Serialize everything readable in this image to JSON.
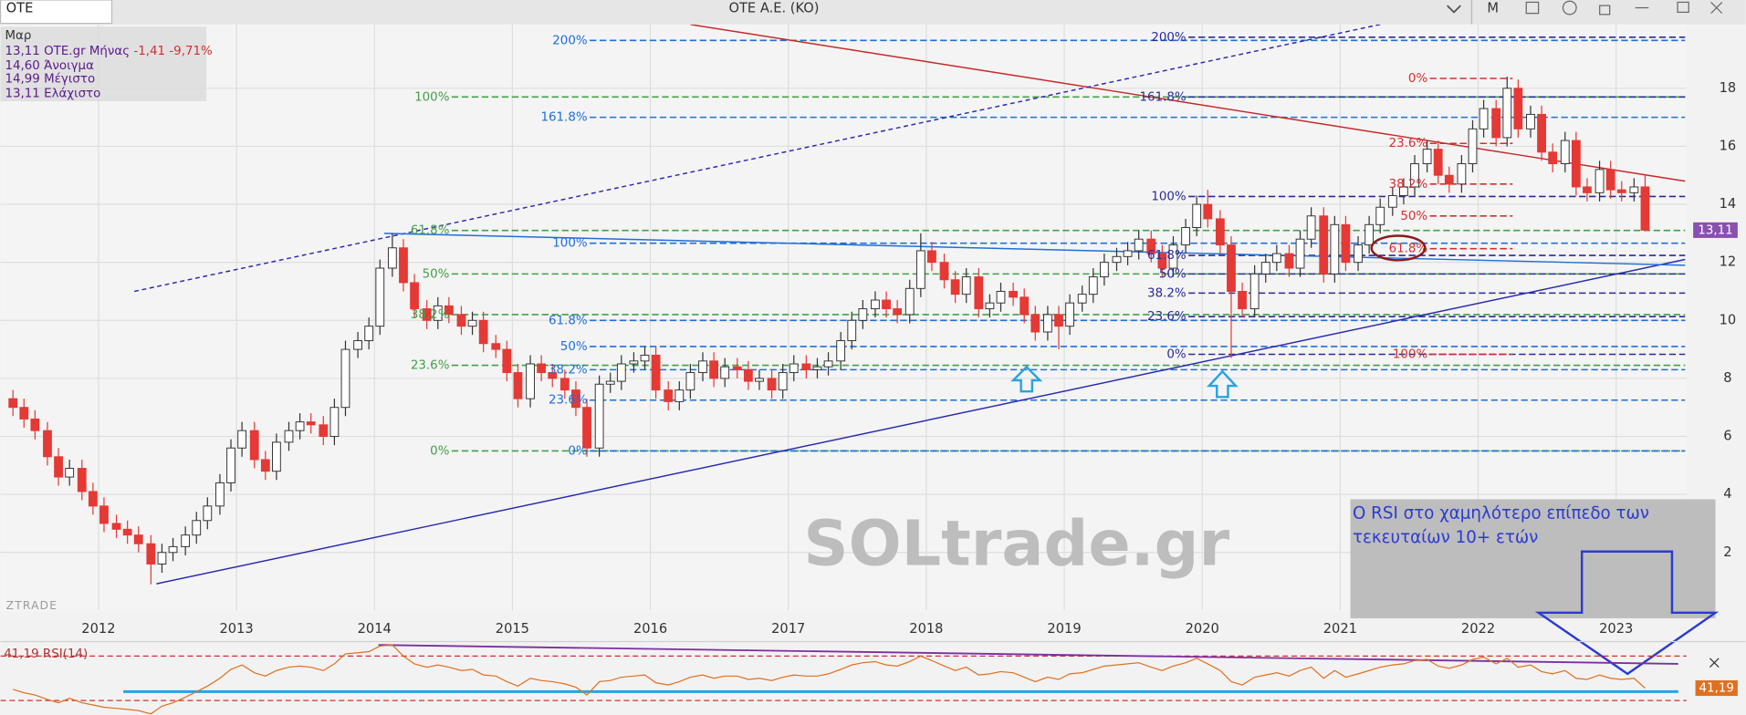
{
  "ui": {
    "symbol": "OTE",
    "menu": "M",
    "info": {
      "period": "Μαρ",
      "line1": "13,11 OTE.gr Μήνας",
      "change": "-1,41 -9,71%",
      "open": "14,60 Άνοιγμα",
      "high": "14,99 Μέγιστο",
      "low": "13,11 Ελάχιστο"
    },
    "watermark": "SOLtrade.gr",
    "brand": "ZTRADE",
    "note_line1": "Ο RSI στο χαμηλότερο επίπεδο των",
    "note_line2": "τεκευταίων 10+ ετών"
  },
  "chart_data": {
    "type": "candlestick",
    "title": "OTE A.E. (KO)",
    "up_color": "#ffffff",
    "down_color": "#e53935",
    "grid": true,
    "xlim": [
      2011.29,
      2023.51
    ],
    "xticks": [
      2012,
      2013,
      2014,
      2015,
      2016,
      2017,
      2018,
      2019,
      2020,
      2021,
      2022,
      2023
    ],
    "ylim": [
      0,
      20.2
    ],
    "yticks": [
      2,
      4,
      6,
      8,
      10,
      12,
      14,
      16,
      18
    ],
    "x": [
      2011.38,
      2011.46,
      2011.54,
      2011.63,
      2011.71,
      2011.79,
      2011.88,
      2011.96,
      2012.04,
      2012.13,
      2012.21,
      2012.29,
      2012.38,
      2012.46,
      2012.54,
      2012.63,
      2012.71,
      2012.79,
      2012.88,
      2012.96,
      2013.04,
      2013.13,
      2013.21,
      2013.29,
      2013.38,
      2013.46,
      2013.54,
      2013.63,
      2013.71,
      2013.79,
      2013.88,
      2013.96,
      2014.04,
      2014.13,
      2014.21,
      2014.29,
      2014.38,
      2014.46,
      2014.54,
      2014.63,
      2014.71,
      2014.79,
      2014.88,
      2014.96,
      2015.04,
      2015.13,
      2015.21,
      2015.29,
      2015.38,
      2015.46,
      2015.54,
      2015.63,
      2015.71,
      2015.79,
      2015.88,
      2015.96,
      2016.04,
      2016.13,
      2016.21,
      2016.29,
      2016.38,
      2016.46,
      2016.54,
      2016.63,
      2016.71,
      2016.79,
      2016.88,
      2016.96,
      2017.04,
      2017.13,
      2017.21,
      2017.29,
      2017.38,
      2017.46,
      2017.54,
      2017.63,
      2017.71,
      2017.79,
      2017.88,
      2017.96,
      2018.04,
      2018.13,
      2018.21,
      2018.29,
      2018.38,
      2018.46,
      2018.54,
      2018.63,
      2018.71,
      2018.79,
      2018.88,
      2018.96,
      2019.04,
      2019.13,
      2019.21,
      2019.29,
      2019.38,
      2019.46,
      2019.54,
      2019.63,
      2019.71,
      2019.79,
      2019.88,
      2019.96,
      2020.04,
      2020.13,
      2020.21,
      2020.29,
      2020.38,
      2020.46,
      2020.54,
      2020.63,
      2020.71,
      2020.79,
      2020.88,
      2020.96,
      2021.04,
      2021.13,
      2021.21,
      2021.29,
      2021.38,
      2021.46,
      2021.54,
      2021.63,
      2021.71,
      2021.79,
      2021.88,
      2021.96,
      2022.04,
      2022.13,
      2022.21,
      2022.29,
      2022.38,
      2022.46,
      2022.54,
      2022.63,
      2022.71,
      2022.79,
      2022.88,
      2022.96,
      2023.04,
      2023.13,
      2023.21
    ],
    "open": [
      7.3,
      7.0,
      6.6,
      6.2,
      5.3,
      4.6,
      4.9,
      4.1,
      3.6,
      3.0,
      2.8,
      2.6,
      2.3,
      1.6,
      2.0,
      2.2,
      2.6,
      3.1,
      3.6,
      4.4,
      5.6,
      6.2,
      5.2,
      4.8,
      5.8,
      6.2,
      6.5,
      6.4,
      6.0,
      7.0,
      9.0,
      9.3,
      9.8,
      11.8,
      12.5,
      11.3,
      10.4,
      10.0,
      10.5,
      10.2,
      9.8,
      10.0,
      9.2,
      9.0,
      8.2,
      7.3,
      8.5,
      8.2,
      8.0,
      7.6,
      7.0,
      5.6,
      7.8,
      7.9,
      8.5,
      8.6,
      8.8,
      7.6,
      7.2,
      7.6,
      8.2,
      8.6,
      8.0,
      8.4,
      8.3,
      7.9,
      8.0,
      7.6,
      8.2,
      8.5,
      8.3,
      8.4,
      8.6,
      9.3,
      10.0,
      10.4,
      10.7,
      10.4,
      10.2,
      11.1,
      12.4,
      12.0,
      11.4,
      10.9,
      11.5,
      10.4,
      10.6,
      11.0,
      10.8,
      10.2,
      9.6,
      10.2,
      9.8,
      10.6,
      10.9,
      11.5,
      12.0,
      12.2,
      12.4,
      12.8,
      12.3,
      11.8,
      12.6,
      13.2,
      14.0,
      13.5,
      12.6,
      11.0,
      10.4,
      11.6,
      12.0,
      12.3,
      11.8,
      12.8,
      13.6,
      11.6,
      13.3,
      12.0,
      12.6,
      13.3,
      13.9,
      14.3,
      14.6,
      15.4,
      15.9,
      15.0,
      14.7,
      15.4,
      16.6,
      17.3,
      16.3,
      18.0,
      16.6,
      17.1,
      15.8,
      15.4,
      16.2,
      14.6,
      14.4,
      15.2,
      14.5,
      14.4,
      14.6
    ],
    "high": [
      7.6,
      7.3,
      6.9,
      6.5,
      5.6,
      5.2,
      5.2,
      4.4,
      3.9,
      3.3,
      3.1,
      2.9,
      2.6,
      2.3,
      2.5,
      2.9,
      3.4,
      3.9,
      4.7,
      5.9,
      6.5,
      6.5,
      5.5,
      6.1,
      6.5,
      6.8,
      6.8,
      6.7,
      7.3,
      9.3,
      9.6,
      10.1,
      12.1,
      13.0,
      12.8,
      11.6,
      10.7,
      10.8,
      10.8,
      10.5,
      10.3,
      10.3,
      9.5,
      9.3,
      8.5,
      8.8,
      8.8,
      8.5,
      8.3,
      7.9,
      7.3,
      8.1,
      8.2,
      8.8,
      8.9,
      9.1,
      9.1,
      7.9,
      7.9,
      8.5,
      8.9,
      8.9,
      8.7,
      8.7,
      8.6,
      8.3,
      8.3,
      8.5,
      8.8,
      8.8,
      8.7,
      8.9,
      9.6,
      10.3,
      10.7,
      11.0,
      11.0,
      10.7,
      11.4,
      13.0,
      12.7,
      12.3,
      11.7,
      11.8,
      11.8,
      10.9,
      11.3,
      11.3,
      11.1,
      10.5,
      10.5,
      10.5,
      10.9,
      11.2,
      11.8,
      12.3,
      12.5,
      12.7,
      13.1,
      13.1,
      12.6,
      12.9,
      13.5,
      14.3,
      14.5,
      13.8,
      12.9,
      11.3,
      11.9,
      12.3,
      12.6,
      12.6,
      13.1,
      13.9,
      13.9,
      13.6,
      13.6,
      12.9,
      13.6,
      14.2,
      14.6,
      14.9,
      15.7,
      16.2,
      16.2,
      15.3,
      15.7,
      16.9,
      17.6,
      17.6,
      18.4,
      18.3,
      17.4,
      17.4,
      16.1,
      16.5,
      16.5,
      14.9,
      15.5,
      15.5,
      14.8,
      14.9,
      14.99
    ],
    "low": [
      6.7,
      6.3,
      5.9,
      5.0,
      4.3,
      4.3,
      3.8,
      3.3,
      2.7,
      2.5,
      2.3,
      2.0,
      0.9,
      1.3,
      1.7,
      1.9,
      2.3,
      2.8,
      3.3,
      4.1,
      5.3,
      4.9,
      4.5,
      4.5,
      5.5,
      5.9,
      6.1,
      5.7,
      5.7,
      6.7,
      8.7,
      9.0,
      9.5,
      11.5,
      11.0,
      10.1,
      9.7,
      9.7,
      9.9,
      9.5,
      9.5,
      8.9,
      8.7,
      7.9,
      7.0,
      7.0,
      7.9,
      7.7,
      7.3,
      6.7,
      5.3,
      5.3,
      7.5,
      7.6,
      8.2,
      8.3,
      7.3,
      6.9,
      6.9,
      7.3,
      7.9,
      7.7,
      7.7,
      8.0,
      7.6,
      7.6,
      7.3,
      7.3,
      7.9,
      8.0,
      8.0,
      8.1,
      8.3,
      9.0,
      9.7,
      10.1,
      10.1,
      9.9,
      9.9,
      10.8,
      11.7,
      11.1,
      10.6,
      10.6,
      10.1,
      10.1,
      10.3,
      10.5,
      9.9,
      9.3,
      9.3,
      9.0,
      9.5,
      10.3,
      10.6,
      11.2,
      11.7,
      11.9,
      12.1,
      12.0,
      11.5,
      11.5,
      12.3,
      12.9,
      13.2,
      12.3,
      8.7,
      10.1,
      10.1,
      11.3,
      11.7,
      11.5,
      11.5,
      12.5,
      11.3,
      11.3,
      11.7,
      11.7,
      12.3,
      13.0,
      13.6,
      14.0,
      14.3,
      15.1,
      14.7,
      14.4,
      14.4,
      15.1,
      16.3,
      16.0,
      16.0,
      16.3,
      16.3,
      15.5,
      15.1,
      15.1,
      14.3,
      14.1,
      14.1,
      14.2,
      14.1,
      14.1,
      13.11
    ],
    "close": [
      7.0,
      6.6,
      6.2,
      5.3,
      4.6,
      4.9,
      4.1,
      3.6,
      3.0,
      2.8,
      2.6,
      2.3,
      1.6,
      2.0,
      2.2,
      2.6,
      3.1,
      3.6,
      4.4,
      5.6,
      6.2,
      5.2,
      4.8,
      5.8,
      6.2,
      6.5,
      6.4,
      6.0,
      7.0,
      9.0,
      9.3,
      9.8,
      11.8,
      12.5,
      11.3,
      10.4,
      10.0,
      10.5,
      10.2,
      9.8,
      10.0,
      9.2,
      9.0,
      8.2,
      7.3,
      8.5,
      8.2,
      8.0,
      7.6,
      7.0,
      5.6,
      7.8,
      7.9,
      8.5,
      8.6,
      8.8,
      7.6,
      7.2,
      7.6,
      8.2,
      8.6,
      8.0,
      8.4,
      8.3,
      7.9,
      8.0,
      7.6,
      8.2,
      8.5,
      8.3,
      8.4,
      8.6,
      9.3,
      10.0,
      10.4,
      10.7,
      10.4,
      10.2,
      11.1,
      12.4,
      12.0,
      11.4,
      10.9,
      11.5,
      10.4,
      10.6,
      11.0,
      10.8,
      10.2,
      9.6,
      10.2,
      9.8,
      10.6,
      10.9,
      11.5,
      12.0,
      12.2,
      12.4,
      12.8,
      12.3,
      11.8,
      12.6,
      13.2,
      14.0,
      13.5,
      12.6,
      11.0,
      10.4,
      11.6,
      12.0,
      12.3,
      11.8,
      12.8,
      13.6,
      11.6,
      13.3,
      12.0,
      12.6,
      13.3,
      13.9,
      14.3,
      14.6,
      15.4,
      15.9,
      15.0,
      14.7,
      15.4,
      16.6,
      17.3,
      16.3,
      18.0,
      16.6,
      17.1,
      15.8,
      15.4,
      16.2,
      14.6,
      14.4,
      15.2,
      14.5,
      14.4,
      14.6,
      13.11
    ],
    "last_price": {
      "value": 13.11,
      "label": "13,11"
    },
    "fibonacci": [
      {
        "color": "#43a047",
        "x_start": 2014.56,
        "x_end": 2023.5,
        "levels": [
          {
            "value": 17.7,
            "label": "100%"
          },
          {
            "value": 13.1,
            "label": "61.8%"
          },
          {
            "value": 11.6,
            "label": "50%"
          },
          {
            "value": 10.2,
            "label": "38.2%"
          },
          {
            "value": 8.45,
            "label": "23.6%"
          },
          {
            "value": 5.5,
            "label": "0%"
          }
        ]
      },
      {
        "color": "#1e6fd9",
        "x_start": 2015.56,
        "x_end": 2023.5,
        "levels": [
          {
            "value": 19.65,
            "label": "200%"
          },
          {
            "value": 17.0,
            "label": "161.8%"
          },
          {
            "value": 12.66,
            "label": "100%"
          },
          {
            "value": 10.0,
            "label": "61.8%"
          },
          {
            "value": 9.1,
            "label": "50%"
          },
          {
            "value": 8.3,
            "label": "38.2%"
          },
          {
            "value": 7.25,
            "label": "23.6%"
          },
          {
            "value": 5.5,
            "label": "0%"
          }
        ]
      },
      {
        "color": "#2a2a9a",
        "x_start": 2019.9,
        "x_end": 2023.5,
        "levels": [
          {
            "value": 19.76,
            "label": "200%"
          },
          {
            "value": 17.7,
            "label": "161.8%"
          },
          {
            "value": 14.27,
            "label": "100%"
          },
          {
            "value": 12.24,
            "label": "61.8%"
          },
          {
            "value": 11.6,
            "label": "50%"
          },
          {
            "value": 10.94,
            "label": "38.2%"
          },
          {
            "value": 10.13,
            "label": "23.6%"
          },
          {
            "value": 8.83,
            "label": "0%"
          }
        ]
      },
      {
        "color": "#d32f2f",
        "x_start": 2021.65,
        "x_end": 2022.25,
        "levels": [
          {
            "value": 18.34,
            "label": "0%"
          },
          {
            "value": 16.1,
            "label": "23.6%"
          },
          {
            "value": 14.7,
            "label": "38.2%"
          },
          {
            "value": 13.6,
            "label": "50%"
          },
          {
            "value": 12.47,
            "label": "61.8%"
          },
          {
            "value": 8.83,
            "label": "100%"
          }
        ]
      }
    ],
    "trendlines": [
      {
        "color": "#c62828",
        "dash": false,
        "x": [
          2016.29,
          2023.5
        ],
        "y": [
          20.2,
          14.8
        ]
      },
      {
        "color": "#2a2ab0",
        "dash": true,
        "x": [
          2012.26,
          2021.29
        ],
        "y": [
          11.0,
          20.2
        ]
      },
      {
        "color": "#2a2ab0",
        "dash": false,
        "x": [
          2012.42,
          2023.5
        ],
        "y": [
          0.92,
          12.1
        ]
      },
      {
        "color": "#1e6fd9",
        "dash": false,
        "x": [
          2014.07,
          2023.5
        ],
        "y": [
          13.0,
          11.9
        ]
      }
    ],
    "indicator": {
      "label": "41,19 RSI(14)",
      "color": "#e07020",
      "ylim": [
        20,
        80
      ],
      "levels": [
        70,
        30
      ],
      "support": {
        "value": 38,
        "x": [
          2012.18,
          2023.45
        ]
      },
      "trend": {
        "x": [
          2014.03,
          2023.45
        ],
        "y": [
          80,
          63
        ]
      },
      "last": {
        "value": 41.19,
        "label": "41,19"
      },
      "values": [
        40,
        37,
        35,
        31,
        28,
        32,
        28,
        26,
        24,
        23,
        22,
        21,
        18,
        25,
        28,
        33,
        38,
        43,
        50,
        58,
        62,
        55,
        52,
        57,
        60,
        61,
        60,
        57,
        63,
        72,
        73,
        74,
        79,
        80,
        70,
        63,
        60,
        62,
        60,
        57,
        58,
        53,
        52,
        47,
        43,
        50,
        48,
        47,
        45,
        42,
        35,
        47,
        48,
        51,
        52,
        53,
        46,
        44,
        47,
        51,
        53,
        50,
        52,
        52,
        49,
        50,
        48,
        51,
        53,
        52,
        52,
        54,
        58,
        62,
        64,
        65,
        62,
        61,
        65,
        70,
        66,
        61,
        57,
        60,
        53,
        54,
        56,
        55,
        51,
        47,
        51,
        49,
        54,
        55,
        58,
        61,
        62,
        63,
        64,
        60,
        57,
        61,
        64,
        68,
        63,
        57,
        47,
        44,
        51,
        53,
        55,
        52,
        57,
        60,
        50,
        57,
        51,
        54,
        57,
        60,
        62,
        63,
        66,
        67,
        61,
        59,
        62,
        67,
        69,
        63,
        68,
        60,
        62,
        56,
        54,
        57,
        50,
        49,
        53,
        50,
        49,
        50,
        41.19
      ]
    }
  }
}
